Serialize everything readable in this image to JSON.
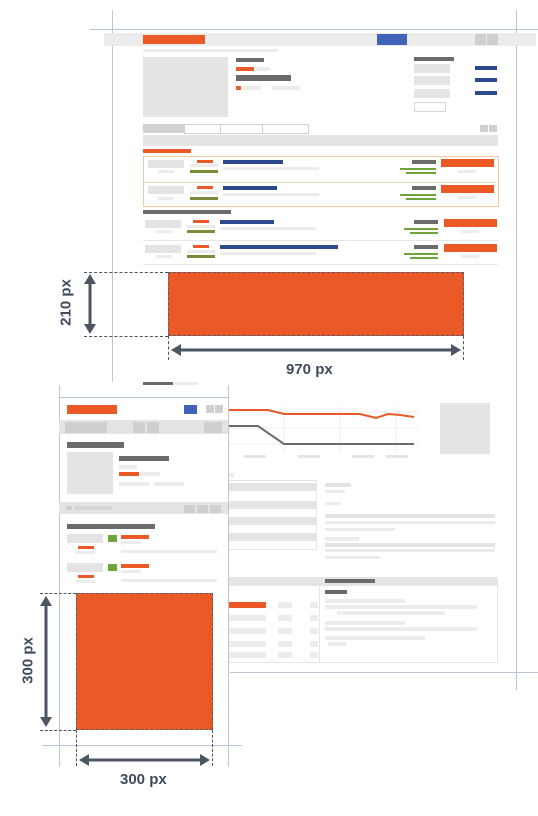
{
  "dimensions": {
    "desktop_width": "970 px",
    "desktop_height": "210 px",
    "mobile_width": "300 px",
    "mobile_height": "300 px"
  },
  "colors": {
    "ad_slot": "#eb5a26",
    "guide": "#b9c6d8",
    "label": "#3f4a5c",
    "chart_orange": "#eb5a26",
    "chart_gray": "#6b6b6b"
  }
}
